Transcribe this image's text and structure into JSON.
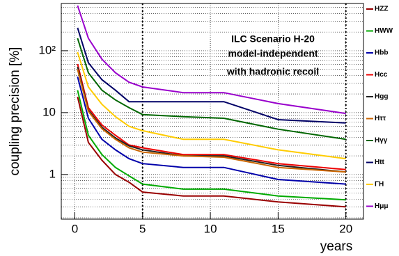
{
  "chart_data": {
    "type": "line",
    "log_y": true,
    "grid": true,
    "legend": "outside-right",
    "ylabel": "coupling precision [%]",
    "xlabel": "years",
    "annotations": [
      "ILC Scenario H-20",
      "model-independent",
      "with hadronic recoil"
    ],
    "xlim": [
      -1,
      21.3
    ],
    "ylim": [
      0.19,
      580
    ],
    "xticks": [
      0,
      5,
      10,
      15,
      20
    ],
    "yticks": [
      1,
      10,
      {
        "value": 100,
        "label": "10²"
      }
    ],
    "vlines": [
      5,
      20
    ],
    "x": [
      0.2,
      1,
      2,
      3,
      4,
      5,
      8,
      11,
      15,
      20
    ],
    "series": [
      {
        "name": "HZZ",
        "color": "#990000",
        "values": [
          18,
          3.3,
          1.7,
          1.0,
          0.75,
          0.52,
          0.45,
          0.45,
          0.36,
          0.3
        ]
      },
      {
        "name": "HWW",
        "color": "#00aa00",
        "values": [
          23,
          4.3,
          2.1,
          1.3,
          0.95,
          0.7,
          0.58,
          0.58,
          0.45,
          0.39
        ]
      },
      {
        "name": "Hbb",
        "color": "#0000aa",
        "values": [
          38,
          8.1,
          3.7,
          2.5,
          1.8,
          1.5,
          1.3,
          1.3,
          0.83,
          0.7
        ]
      },
      {
        "name": "Hcc",
        "color": "#ee0000",
        "values": [
          61,
          12,
          6.3,
          4.3,
          3.0,
          2.7,
          2.1,
          2.1,
          1.5,
          1.2
        ]
      },
      {
        "name": "Hgg",
        "color": "#222222",
        "values": [
          55,
          11,
          5.8,
          3.9,
          2.9,
          2.5,
          2.0,
          2.0,
          1.4,
          1.1
        ]
      },
      {
        "name": "Hττ",
        "color": "#cc6600",
        "values": [
          50,
          10.5,
          5.5,
          3.7,
          2.7,
          2.3,
          2.0,
          1.9,
          1.3,
          1.1
        ]
      },
      {
        "name": "Hγγ",
        "color": "#006600",
        "values": [
          159,
          44,
          23,
          16,
          12,
          9.3,
          8.6,
          8.1,
          5.4,
          3.7
        ]
      },
      {
        "name": "Htt",
        "color": "#000066",
        "values": [
          235,
          64,
          34,
          23,
          15,
          15,
          15,
          15,
          7.7,
          6.8
        ]
      },
      {
        "name": "ΓH",
        "color": "#ffcc00",
        "values": [
          95,
          26,
          13.6,
          8.6,
          6.0,
          5.1,
          3.7,
          3.7,
          2.5,
          1.8
        ]
      },
      {
        "name": "Hμμ",
        "color": "#9900cc",
        "values": [
          537,
          159,
          73,
          44,
          31,
          26,
          21,
          21,
          14,
          9.7
        ]
      }
    ]
  }
}
